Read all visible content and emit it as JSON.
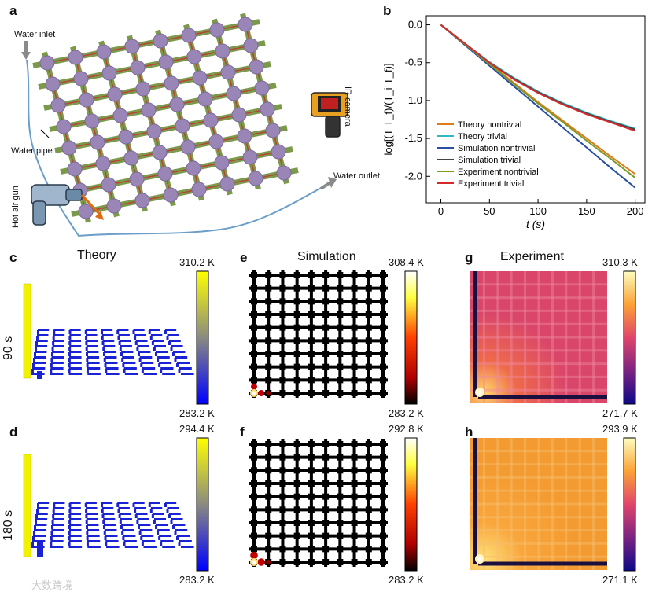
{
  "panel_labels": {
    "a": "a",
    "b": "b",
    "c": "c",
    "d": "d",
    "e": "e",
    "f": "f",
    "g": "g",
    "h": "h"
  },
  "panel_a": {
    "water_inlet": "Water inlet",
    "water_pipe": "Water pipe",
    "hot_air_gun": "Hot air gun",
    "ir_camera": "IR camera",
    "water_outlet": "Water outlet"
  },
  "titles": {
    "theory": "Theory",
    "simulation": "Simulation",
    "experiment": "Experiment"
  },
  "row_labels": {
    "c": "90 s",
    "d": "180 s"
  },
  "colorbars": {
    "c": {
      "max": "310.2 K",
      "min": "283.2 K"
    },
    "e": {
      "max": "308.4 K",
      "min": "283.2 K"
    },
    "g": {
      "max": "310.3 K",
      "min": "271.7 K"
    },
    "d": {
      "max": "294.4 K",
      "min": "283.2 K"
    },
    "f": {
      "max": "292.8 K",
      "min": "283.2 K"
    },
    "h": {
      "max": "293.9 K",
      "min": "271.1 K"
    }
  },
  "colors": {
    "yellow": "#f2f200",
    "blue": "#1a22d6",
    "theory_line": "#e07b1a",
    "theory_trivial": "#31b8c8",
    "sim_nontrivial": "#2a4fa0",
    "sim_trivial": "#444444",
    "exp_nontrivial": "#7a9a2a",
    "exp_trivial": "#d62a2a"
  },
  "watermark": "大数跨境",
  "chart_data": {
    "type": "line",
    "title": "",
    "xlabel": "t (s)",
    "ylabel": "log[(T-T_f)/(T_i-T_f)]",
    "xlim": [
      -15,
      210
    ],
    "ylim": [
      -2.35,
      0.12
    ],
    "xticks": [
      0,
      50,
      100,
      150,
      200
    ],
    "yticks": [
      0.0,
      -0.5,
      -1.0,
      -1.5,
      -2.0
    ],
    "xtick_labels": [
      "0",
      "50",
      "100",
      "150",
      "200"
    ],
    "ytick_labels": [
      "0.0",
      "-0.5",
      "-1.0",
      "-1.5",
      "-2.0"
    ],
    "legend_position": "bottom-left",
    "series": [
      {
        "name": "Theory nontrivial",
        "color": "#e07b1a",
        "x": [
          0,
          25,
          50,
          75,
          100,
          125,
          150,
          175,
          200
        ],
        "y": [
          0,
          -0.255,
          -0.51,
          -0.765,
          -1.02,
          -1.26,
          -1.5,
          -1.74,
          -1.97
        ]
      },
      {
        "name": "Theory trivial",
        "color": "#31b8c8",
        "x": [
          0,
          25,
          50,
          75,
          100,
          125,
          150,
          175,
          200
        ],
        "y": [
          0,
          -0.25,
          -0.49,
          -0.7,
          -0.88,
          -1.03,
          -1.16,
          -1.27,
          -1.37
        ]
      },
      {
        "name": "Simulation nontrivial",
        "color": "#2a4fa0",
        "x": [
          0,
          25,
          50,
          75,
          100,
          125,
          150,
          175,
          200
        ],
        "y": [
          0,
          -0.27,
          -0.54,
          -0.81,
          -1.08,
          -1.35,
          -1.62,
          -1.89,
          -2.15
        ]
      },
      {
        "name": "Simulation trivial",
        "color": "#444444",
        "x": [
          0,
          25,
          50,
          75,
          100,
          125,
          150,
          175,
          200
        ],
        "y": [
          0,
          -0.25,
          -0.5,
          -0.71,
          -0.89,
          -1.04,
          -1.17,
          -1.28,
          -1.38
        ]
      },
      {
        "name": "Experiment nontrivial",
        "color": "#7a9a2a",
        "x": [
          0,
          25,
          50,
          75,
          100,
          125,
          150,
          175,
          200
        ],
        "y": [
          0,
          -0.26,
          -0.52,
          -0.78,
          -1.04,
          -1.28,
          -1.53,
          -1.77,
          -2.02
        ]
      },
      {
        "name": "Experiment trivial",
        "color": "#d62a2a",
        "x": [
          0,
          25,
          50,
          75,
          100,
          125,
          150,
          175,
          200
        ],
        "y": [
          0,
          -0.25,
          -0.5,
          -0.72,
          -0.9,
          -1.05,
          -1.18,
          -1.29,
          -1.4
        ]
      }
    ]
  }
}
